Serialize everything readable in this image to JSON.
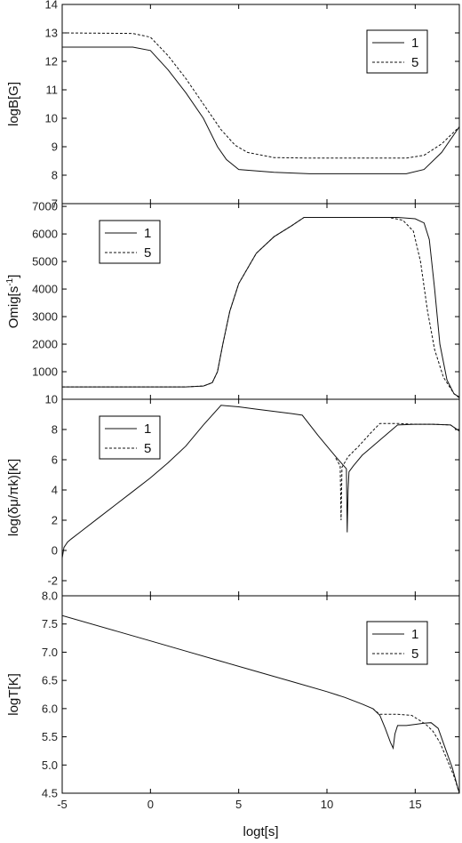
{
  "chart_data": [
    {
      "type": "line",
      "ylabel": "logB[G]",
      "xlabel": "",
      "xlim": [
        -5,
        17.5
      ],
      "ylim": [
        7,
        14
      ],
      "yticks": [
        7,
        8,
        9,
        10,
        11,
        12,
        13,
        14
      ],
      "xticks": [
        -5,
        0,
        5,
        10,
        15
      ],
      "legend": {
        "placement": "top-right",
        "items": [
          "1",
          "5"
        ]
      },
      "series": [
        {
          "name": "1",
          "style": "solid",
          "x": [
            -5,
            -1,
            0,
            1,
            2,
            3,
            3.8,
            4.3,
            5,
            7,
            9,
            11,
            13,
            14.5,
            15.5,
            16.5,
            17.5
          ],
          "y": [
            12.5,
            12.5,
            12.38,
            11.7,
            10.9,
            10.0,
            9.0,
            8.55,
            8.2,
            8.1,
            8.05,
            8.05,
            8.05,
            8.05,
            8.2,
            8.8,
            9.7
          ]
        },
        {
          "name": "5",
          "style": "dashed",
          "x": [
            -5,
            -1,
            0,
            1,
            2,
            3,
            4,
            4.8,
            5.5,
            7,
            9,
            11,
            13,
            14.5,
            15.5,
            16.5,
            17.5
          ],
          "y": [
            13.0,
            12.98,
            12.85,
            12.2,
            11.4,
            10.5,
            9.6,
            9.05,
            8.8,
            8.62,
            8.6,
            8.6,
            8.6,
            8.6,
            8.7,
            9.1,
            9.7
          ]
        }
      ]
    },
    {
      "type": "line",
      "ylabel": "Omig[s",
      "ylabel_sup": "-1",
      "ylabel_end": "]",
      "xlabel": "",
      "xlim": [
        -5,
        17.5
      ],
      "ylim": [
        0,
        7100
      ],
      "yticks": [
        1000,
        2000,
        3000,
        4000,
        5000,
        6000,
        7000
      ],
      "xticks": [
        -5,
        0,
        5,
        10,
        15
      ],
      "legend": {
        "placement": "top-left",
        "items": [
          "1",
          "5"
        ]
      },
      "series": [
        {
          "name": "1",
          "style": "solid",
          "x": [
            -5,
            2,
            3,
            3.5,
            3.8,
            4.1,
            4.5,
            5,
            6,
            7,
            8,
            8.7,
            10,
            12,
            14,
            15,
            15.5,
            15.8,
            16.1,
            16.4,
            16.8,
            17.2,
            17.5
          ],
          "y": [
            450,
            450,
            480,
            600,
            1000,
            2000,
            3200,
            4200,
            5300,
            5900,
            6300,
            6600,
            6600,
            6600,
            6600,
            6550,
            6400,
            5800,
            4000,
            2000,
            700,
            200,
            80
          ]
        },
        {
          "name": "5",
          "style": "dashed",
          "x": [
            -5,
            2,
            3,
            3.5,
            3.8,
            4.1,
            4.5,
            5,
            6,
            7,
            8,
            8.7,
            10,
            12,
            13.5,
            14.3,
            14.9,
            15.3,
            15.7,
            16.1,
            16.6,
            17.2,
            17.5
          ],
          "y": [
            450,
            450,
            480,
            600,
            1000,
            2000,
            3200,
            4200,
            5300,
            5900,
            6300,
            6600,
            6600,
            6600,
            6600,
            6500,
            6100,
            5000,
            3200,
            1800,
            800,
            200,
            50
          ]
        }
      ]
    },
    {
      "type": "line",
      "ylabel": "log(δμ/πk)[K]",
      "xlabel": "",
      "xlim": [
        -5,
        17.5
      ],
      "ylim": [
        -3,
        10
      ],
      "yticks": [
        -2,
        0,
        2,
        4,
        6,
        8,
        10
      ],
      "xticks": [
        -5,
        0,
        5,
        10,
        15
      ],
      "legend": {
        "placement": "top-left",
        "items": [
          "1",
          "5"
        ]
      },
      "series": [
        {
          "name": "1",
          "style": "solid",
          "x": [
            -5,
            -4.9,
            -4.7,
            -4.5,
            -4,
            -3,
            -2,
            -1,
            0,
            1,
            2,
            3,
            4,
            5,
            6,
            7,
            8,
            8.6,
            9.5,
            10.5,
            11.1,
            11.15,
            11.2,
            11.25,
            11.5,
            12,
            13,
            14,
            15,
            16,
            17,
            17.5
          ],
          "y": [
            -0.5,
            0.2,
            0.55,
            0.75,
            1.2,
            2.1,
            3.0,
            3.9,
            4.8,
            5.8,
            6.9,
            8.3,
            9.6,
            9.5,
            9.35,
            9.2,
            9.05,
            8.95,
            7.6,
            6.2,
            5.4,
            1.2,
            4.0,
            5.2,
            5.6,
            6.3,
            7.3,
            8.3,
            8.35,
            8.35,
            8.3,
            7.9
          ]
        },
        {
          "name": "5",
          "style": "dashed",
          "x": [
            10.5,
            10.75,
            10.8,
            10.85,
            11.2,
            11.8,
            12.5,
            13,
            14,
            15,
            16,
            17,
            17.5
          ],
          "y": [
            6.1,
            5.6,
            2.0,
            5.5,
            6.2,
            6.9,
            7.8,
            8.4,
            8.4,
            8.35,
            8.35,
            8.3,
            7.9
          ]
        }
      ]
    },
    {
      "type": "line",
      "ylabel": "logT[K]",
      "xlabel": "logt[s]",
      "xlim": [
        -5,
        17.5
      ],
      "ylim": [
        4.5,
        8.0
      ],
      "yticks": [
        4.5,
        5.0,
        5.5,
        6.0,
        6.5,
        7.0,
        7.5,
        8.0
      ],
      "xticks": [
        -5,
        0,
        5,
        10,
        15
      ],
      "legend": {
        "placement": "top-right",
        "items": [
          "1",
          "5"
        ]
      },
      "series": [
        {
          "name": "1",
          "style": "solid",
          "x": [
            -5,
            -2,
            0,
            2,
            4,
            6,
            8,
            10,
            11,
            12,
            12.6,
            13,
            13.3,
            13.6,
            13.75,
            13.85,
            14,
            14.5,
            15,
            15.5,
            15.9,
            16.3,
            16.7,
            17.1,
            17.5
          ],
          "y": [
            7.65,
            7.38,
            7.2,
            7.02,
            6.84,
            6.66,
            6.48,
            6.3,
            6.2,
            6.08,
            6.0,
            5.88,
            5.65,
            5.4,
            5.3,
            5.55,
            5.7,
            5.7,
            5.72,
            5.74,
            5.75,
            5.65,
            5.3,
            4.95,
            4.5
          ]
        },
        {
          "name": "5",
          "style": "dashed",
          "x": [
            12.6,
            12.9,
            13,
            14,
            14.8,
            15.2,
            15.6,
            16,
            16.4,
            16.8,
            17.2,
            17.5
          ],
          "y": [
            6.0,
            5.92,
            5.9,
            5.9,
            5.88,
            5.8,
            5.72,
            5.6,
            5.4,
            5.1,
            4.8,
            4.5
          ]
        }
      ]
    }
  ]
}
